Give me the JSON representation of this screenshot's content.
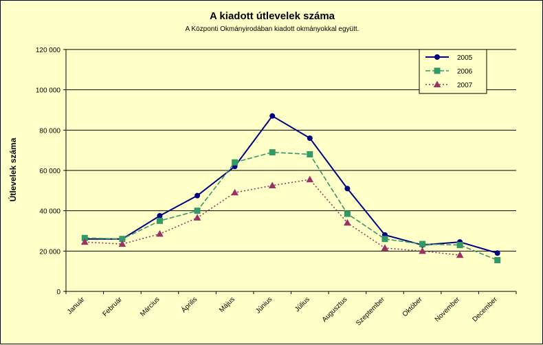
{
  "chart_data": {
    "type": "line",
    "title": "A kiadott útlevelek száma",
    "subtitle": "A Központi Okmányirodában kiadott okmányokkal együtt.",
    "xlabel": "",
    "ylabel": "Útlevelek száma",
    "ylim": [
      0,
      120000
    ],
    "y_tick_labels": [
      "0",
      "20 000",
      "40 000",
      "60 000",
      "80 000",
      "100 000",
      "120 000"
    ],
    "categories": [
      "Január",
      "Február",
      "Március",
      "Április",
      "Május",
      "Június",
      "Július",
      "Augusztus",
      "Szeptember",
      "Október",
      "November",
      "December"
    ],
    "grid": true,
    "legend_position": "top-right",
    "series": [
      {
        "name": "2005",
        "color": "#000080",
        "marker": "circle",
        "dash": "solid",
        "values": [
          26000,
          26000,
          37500,
          47500,
          62000,
          87000,
          76000,
          51000,
          28000,
          23000,
          24500,
          19000
        ]
      },
      {
        "name": "2006",
        "color": "#339966",
        "marker": "square",
        "dash": "dashed",
        "values": [
          26500,
          26000,
          35000,
          40000,
          64000,
          69000,
          68000,
          38500,
          26000,
          23500,
          23000,
          15500
        ]
      },
      {
        "name": "2007",
        "color": "#993366",
        "marker": "triangle",
        "dash": "dotted",
        "values": [
          24500,
          23500,
          28500,
          36500,
          49000,
          52500,
          55500,
          34000,
          21500,
          20000,
          18000,
          null
        ]
      }
    ]
  }
}
